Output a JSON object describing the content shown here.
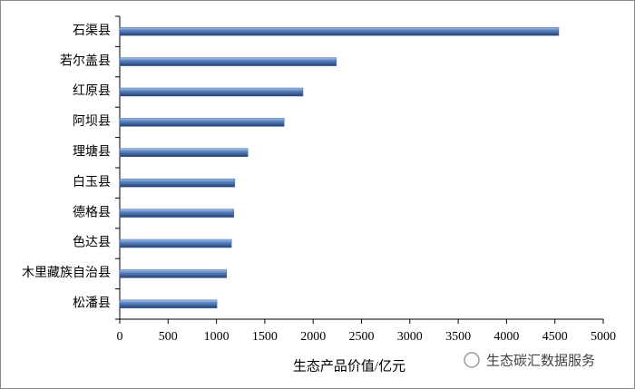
{
  "chart_data": {
    "type": "bar",
    "orientation": "horizontal",
    "x_label": "生态产品价值/亿元",
    "annotation": "生态碳汇数据服务",
    "categories": [
      "石渠县",
      "若尔盖县",
      "红原县",
      "阿坝县",
      "理塘县",
      "白玉县",
      "德格县",
      "色达县",
      "木里藏族自治县",
      "松潘县"
    ],
    "values": [
      4540,
      2240,
      1895,
      1700,
      1325,
      1190,
      1180,
      1155,
      1105,
      1005
    ],
    "color": "#3f68a8",
    "xlim": [
      0,
      5000
    ],
    "xticks": [
      0,
      500,
      1000,
      1500,
      2000,
      2500,
      3000,
      3500,
      4000,
      4500,
      5000
    ],
    "grid": false
  }
}
